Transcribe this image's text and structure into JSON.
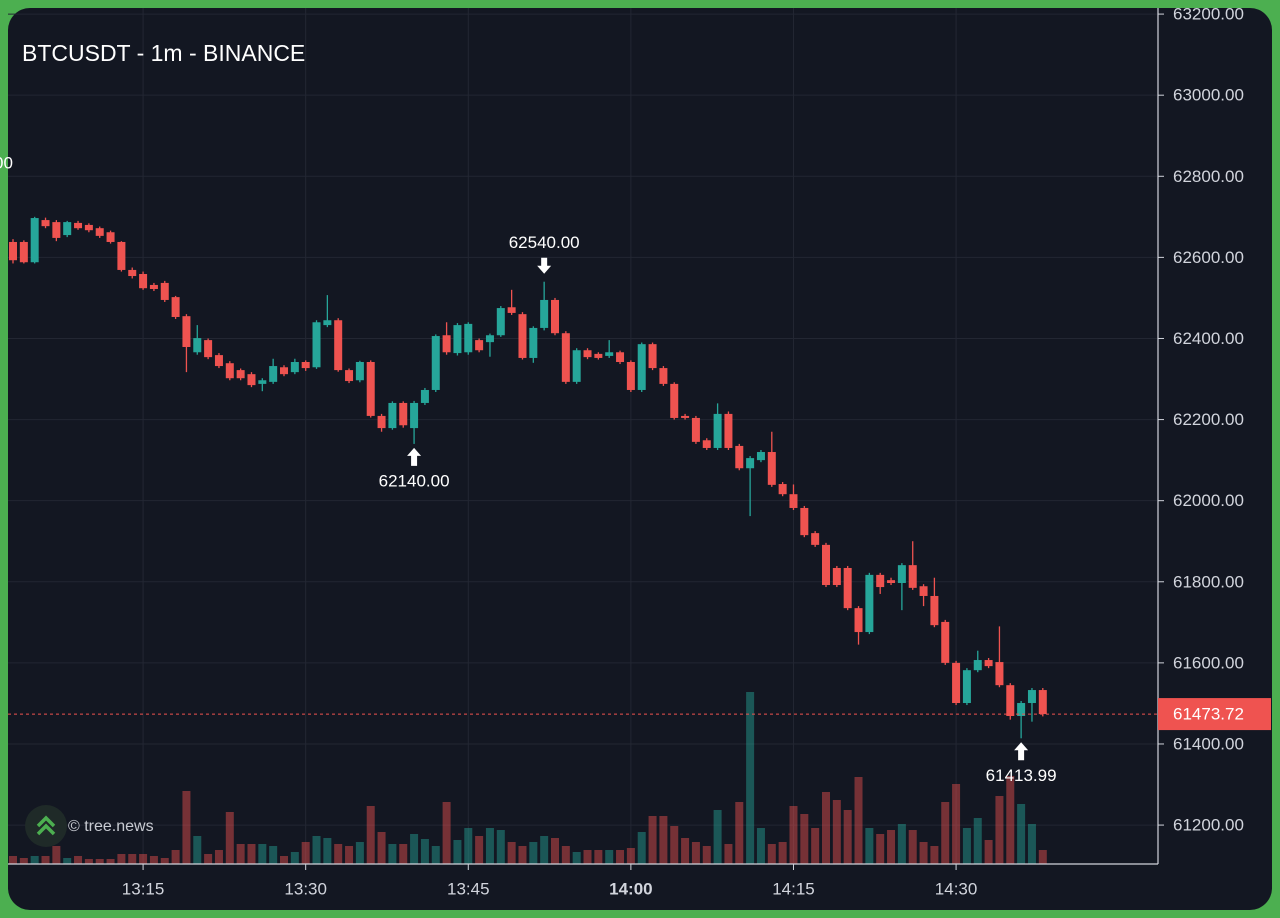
{
  "chart_data": {
    "type": "candlestick",
    "title": "BTCUSDT - 1m - BINANCE",
    "watermark": "© tree.news",
    "up_color": "#26a69a",
    "down_color": "#ef5350",
    "grid": true,
    "ylim": [
      61104,
      63215
    ],
    "yticks": [
      {
        "value": 63200,
        "label": "63200.00"
      },
      {
        "value": 63000,
        "label": "63000.00"
      },
      {
        "value": 62800,
        "label": "62800.00"
      },
      {
        "value": 62600,
        "label": "62600.00"
      },
      {
        "value": 62400,
        "label": "62400.00"
      },
      {
        "value": 62200,
        "label": "62200.00"
      },
      {
        "value": 62000,
        "label": "62000.00"
      },
      {
        "value": 61800,
        "label": "61800.00"
      },
      {
        "value": 61600,
        "label": "61600.00"
      },
      {
        "value": 61400,
        "label": "61400.00"
      },
      {
        "value": 61200,
        "label": "61200.00"
      }
    ],
    "xticks": [
      "13:15",
      "13:30",
      "13:45",
      "14:00",
      "14:15",
      "14:30"
    ],
    "xtick_bold": [
      false,
      false,
      false,
      true,
      false,
      false
    ],
    "x": [
      "13:03",
      "13:04",
      "13:05",
      "13:06",
      "13:07",
      "13:08",
      "13:09",
      "13:10",
      "13:11",
      "13:12",
      "13:13",
      "13:14",
      "13:15",
      "13:16",
      "13:17",
      "13:18",
      "13:19",
      "13:20",
      "13:21",
      "13:22",
      "13:23",
      "13:24",
      "13:25",
      "13:26",
      "13:27",
      "13:28",
      "13:29",
      "13:30",
      "13:31",
      "13:32",
      "13:33",
      "13:34",
      "13:35",
      "13:36",
      "13:37",
      "13:38",
      "13:39",
      "13:40",
      "13:41",
      "13:42",
      "13:43",
      "13:44",
      "13:45",
      "13:46",
      "13:47",
      "13:48",
      "13:49",
      "13:50",
      "13:51",
      "13:52",
      "13:53",
      "13:54",
      "13:55",
      "13:56",
      "13:57",
      "13:58",
      "13:59",
      "14:00",
      "14:01",
      "14:02",
      "14:03",
      "14:04",
      "14:05",
      "14:06",
      "14:07",
      "14:08",
      "14:09",
      "14:10",
      "14:11",
      "14:12",
      "14:13",
      "14:14",
      "14:15",
      "14:16",
      "14:17",
      "14:18",
      "14:19",
      "14:20",
      "14:21",
      "14:22",
      "14:23",
      "14:24",
      "14:25",
      "14:26",
      "14:27",
      "14:28",
      "14:29",
      "14:30",
      "14:31",
      "14:32",
      "14:33",
      "14:34",
      "14:35",
      "14:36",
      "14:37",
      "14:38"
    ],
    "ohlc": [
      [
        62638,
        62645,
        62585,
        62593
      ],
      [
        62638,
        62642,
        62585,
        62588
      ],
      [
        62588,
        62700,
        62585,
        62697
      ],
      [
        62692,
        62698,
        62672,
        62677
      ],
      [
        62687,
        62692,
        62640,
        62648
      ],
      [
        62655,
        62690,
        62650,
        62687
      ],
      [
        62685,
        62690,
        62668,
        62672
      ],
      [
        62680,
        62684,
        62662,
        62667
      ],
      [
        62672,
        62676,
        62648,
        62653
      ],
      [
        62662,
        62666,
        62634,
        62638
      ],
      [
        62638,
        62640,
        62565,
        62569
      ],
      [
        62569,
        62575,
        62548,
        62554
      ],
      [
        62559,
        62565,
        62520,
        62524
      ],
      [
        62532,
        62537,
        62517,
        62522
      ],
      [
        62537,
        62542,
        62490,
        62495
      ],
      [
        62502,
        62505,
        62448,
        62453
      ],
      [
        62455,
        62460,
        62317,
        62379
      ],
      [
        62366,
        62433,
        62360,
        62401
      ],
      [
        62396,
        62400,
        62349,
        62354
      ],
      [
        62359,
        62364,
        62327,
        62332
      ],
      [
        62339,
        62344,
        62297,
        62302
      ],
      [
        62322,
        62326,
        62297,
        62302
      ],
      [
        62312,
        62317,
        62280,
        62285
      ],
      [
        62288,
        62302,
        62270,
        62297
      ],
      [
        62293,
        62350,
        62288,
        62332
      ],
      [
        62329,
        62334,
        62307,
        62312
      ],
      [
        62317,
        62350,
        62312,
        62342
      ],
      [
        62342,
        62346,
        62320,
        62327
      ],
      [
        62329,
        62445,
        62325,
        62440
      ],
      [
        62433,
        62507,
        62428,
        62445
      ],
      [
        62445,
        62450,
        62318,
        62322
      ],
      [
        62322,
        62326,
        62290,
        62295
      ],
      [
        62297,
        62345,
        62292,
        62342
      ],
      [
        62342,
        62346,
        62205,
        62209
      ],
      [
        62209,
        62214,
        62170,
        62179
      ],
      [
        62179,
        62245,
        62175,
        62241
      ],
      [
        62241,
        62245,
        62180,
        62186
      ],
      [
        62179,
        62246,
        62140,
        62241
      ],
      [
        62241,
        62278,
        62236,
        62273
      ],
      [
        62273,
        62410,
        62268,
        62406
      ],
      [
        62408,
        62440,
        62360,
        62366
      ],
      [
        62364,
        62438,
        62358,
        62433
      ],
      [
        62366,
        62440,
        62360,
        62436
      ],
      [
        62396,
        62400,
        62366,
        62371
      ],
      [
        62391,
        62412,
        62355,
        62408
      ],
      [
        62408,
        62480,
        62404,
        62475
      ],
      [
        62477,
        62520,
        62458,
        62463
      ],
      [
        62460,
        62465,
        62348,
        62352
      ],
      [
        62352,
        62430,
        62340,
        62426
      ],
      [
        62426,
        62540,
        62420,
        62495
      ],
      [
        62495,
        62500,
        62408,
        62413
      ],
      [
        62413,
        62418,
        62288,
        62293
      ],
      [
        62293,
        62376,
        62288,
        62371
      ],
      [
        62371,
        62376,
        62349,
        62354
      ],
      [
        62362,
        62366,
        62348,
        62352
      ],
      [
        62357,
        62396,
        62352,
        62366
      ],
      [
        62366,
        62370,
        62337,
        62342
      ],
      [
        62342,
        62346,
        62268,
        62273
      ],
      [
        62273,
        62390,
        62268,
        62386
      ],
      [
        62386,
        62390,
        62322,
        62327
      ],
      [
        62327,
        62332,
        62283,
        62288
      ],
      [
        62288,
        62292,
        62200,
        62204
      ],
      [
        62209,
        62214,
        62200,
        62204
      ],
      [
        62204,
        62209,
        62140,
        62145
      ],
      [
        62149,
        62154,
        62125,
        62130
      ],
      [
        62130,
        62240,
        62125,
        62214
      ],
      [
        62214,
        62220,
        62125,
        62130
      ],
      [
        62135,
        62140,
        62075,
        62080
      ],
      [
        62080,
        62110,
        61962,
        62105
      ],
      [
        62100,
        62125,
        62095,
        62120
      ],
      [
        62120,
        62170,
        62034,
        62039
      ],
      [
        62041,
        62046,
        62011,
        62016
      ],
      [
        62016,
        62040,
        61977,
        61982
      ],
      [
        61982,
        61987,
        61910,
        61915
      ],
      [
        61920,
        61925,
        61886,
        61891
      ],
      [
        61891,
        61896,
        61787,
        61792
      ],
      [
        61834,
        61839,
        61787,
        61792
      ],
      [
        61834,
        61839,
        61730,
        61735
      ],
      [
        61735,
        61740,
        61645,
        61676
      ],
      [
        61676,
        61822,
        61671,
        61817
      ],
      [
        61817,
        61822,
        61770,
        61787
      ],
      [
        61804,
        61810,
        61792,
        61797
      ],
      [
        61797,
        61846,
        61730,
        61841
      ],
      [
        61841,
        61900,
        61780,
        61785
      ],
      [
        61789,
        61794,
        61740,
        61765
      ],
      [
        61765,
        61810,
        61688,
        61693
      ],
      [
        61701,
        61706,
        61595,
        61600
      ],
      [
        61600,
        61605,
        61496,
        61501
      ],
      [
        61501,
        61587,
        61496,
        61582
      ],
      [
        61582,
        61630,
        61577,
        61607
      ],
      [
        61607,
        61612,
        61587,
        61592
      ],
      [
        61602,
        61690,
        61540,
        61545
      ],
      [
        61545,
        61550,
        61460,
        61469
      ],
      [
        61469,
        61506,
        61414,
        61501
      ],
      [
        61501,
        61538,
        61455,
        61533
      ],
      [
        61533,
        61538,
        61468,
        61473.72
      ]
    ],
    "volume": [
      8,
      6,
      8,
      8,
      18,
      6,
      8,
      5,
      5,
      5,
      10,
      10,
      10,
      8,
      6,
      14,
      73,
      28,
      10,
      14,
      52,
      20,
      20,
      20,
      18,
      8,
      12,
      22,
      28,
      26,
      20,
      18,
      22,
      58,
      32,
      20,
      20,
      30,
      25,
      18,
      62,
      24,
      36,
      28,
      36,
      34,
      22,
      18,
      22,
      28,
      26,
      18,
      12,
      14,
      14,
      14,
      14,
      16,
      32,
      48,
      48,
      38,
      26,
      22,
      18,
      54,
      20,
      62,
      172,
      36,
      20,
      22,
      58,
      50,
      36,
      72,
      64,
      54,
      87,
      36,
      30,
      34,
      40,
      34,
      22,
      18,
      62,
      80,
      36,
      46,
      24,
      68,
      88,
      60,
      40,
      14
    ],
    "last_price": 61473.72,
    "annotations": [
      {
        "x": "13:52",
        "value": 62540,
        "label": "62540.00",
        "position": "above"
      },
      {
        "x": "13:40",
        "value": 62140,
        "label": "62140.00",
        "position": "below"
      },
      {
        "x": "14:36",
        "value": 61413.99,
        "label": "61413.99",
        "position": "below"
      }
    ],
    "cropped_label": "00"
  }
}
